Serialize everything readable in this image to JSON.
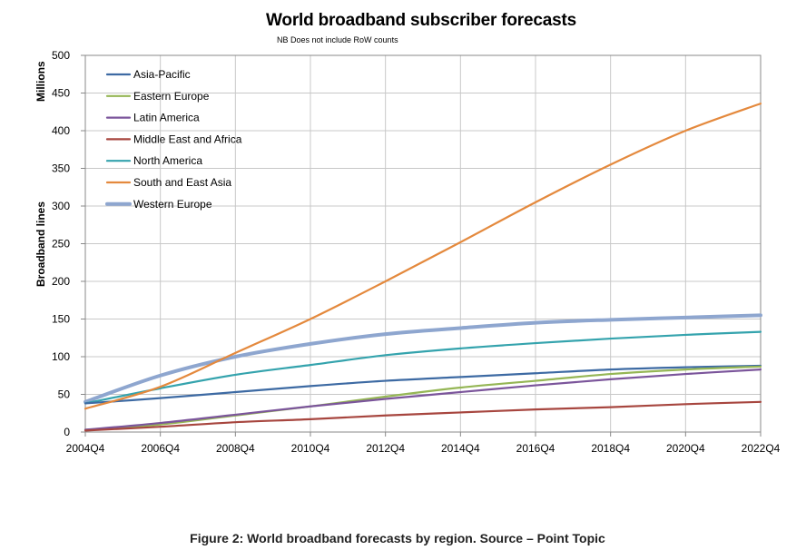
{
  "chart_data": {
    "type": "line",
    "title": "World broadband subscriber forecasts",
    "subtitle": "NB Does not include RoW counts",
    "ylabel_top": "Millions",
    "ylabel": "Broadband lines",
    "xlabel": "",
    "ylim": [
      0,
      500
    ],
    "y_ticks": [
      0,
      50,
      100,
      150,
      200,
      250,
      300,
      350,
      400,
      450,
      500
    ],
    "x_ticks": [
      "2004Q4",
      "2006Q4",
      "2008Q4",
      "2010Q4",
      "2012Q4",
      "2014Q4",
      "2016Q4",
      "2018Q4",
      "2020Q4",
      "2022Q4"
    ],
    "x": [
      "2004Q4",
      "2006Q4",
      "2008Q4",
      "2010Q4",
      "2012Q4",
      "2014Q4",
      "2016Q4",
      "2018Q4",
      "2020Q4",
      "2022Q4"
    ],
    "grid": true,
    "legend_position": "top-left",
    "series": [
      {
        "name": "Asia-Pacific",
        "color": "#3d6aa3",
        "values": [
          38,
          45,
          53,
          61,
          68,
          73,
          78,
          83,
          86,
          88
        ]
      },
      {
        "name": "Eastern Europe",
        "color": "#95b655",
        "values": [
          3,
          10,
          22,
          34,
          47,
          59,
          68,
          77,
          83,
          87
        ]
      },
      {
        "name": "Latin America",
        "color": "#7b559b",
        "values": [
          3,
          12,
          23,
          34,
          44,
          53,
          62,
          70,
          77,
          83
        ]
      },
      {
        "name": "Middle East and Africa",
        "color": "#a7463f",
        "values": [
          2,
          7,
          13,
          17,
          22,
          26,
          30,
          33,
          37,
          40
        ]
      },
      {
        "name": "North America",
        "color": "#34a3ad",
        "values": [
          38,
          58,
          76,
          89,
          102,
          111,
          118,
          124,
          129,
          133
        ]
      },
      {
        "name": "South and East Asia",
        "color": "#e4893d",
        "values": [
          31,
          60,
          105,
          150,
          200,
          252,
          305,
          355,
          400,
          436
        ]
      },
      {
        "name": "Western Europe",
        "color": "#8ea6cf",
        "values": [
          40,
          75,
          100,
          117,
          130,
          138,
          145,
          149,
          152,
          155
        ]
      }
    ]
  },
  "caption": "Figure 2: World broadband forecasts by region. Source – Point Topic"
}
